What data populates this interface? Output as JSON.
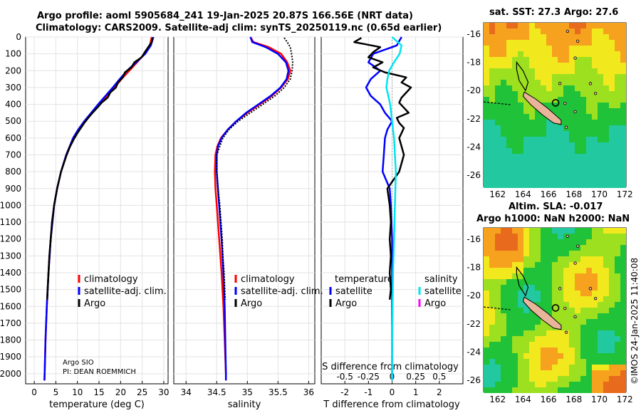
{
  "header": {
    "line1": "Argo profile: aoml 5905684_241 19-Jan-2025 20.87S 166.56E (NRT data)",
    "line2": "Climatology: CARS2009. Satellite-adj clim: synTS_20250119.nc (0.65d earlier)"
  },
  "map_sst": {
    "title": "sat. SST: 27.3 Argo: 27.6"
  },
  "map_sla": {
    "title_line1": "Altim. SLA: -0.017",
    "title_line2": "Argo h1000: NaN h2000: NaN"
  },
  "stamp": "©IMOS 24-Jan-2025 11:40:08",
  "pi": {
    "line1": "Argo SIO",
    "line2": "PI: DEAN ROEMMICH"
  },
  "colors": {
    "climatology": "#ff0000",
    "satellite": "#0000ff",
    "argo": "#000000",
    "sat_salinity": "#00e5ee",
    "argo_salinity": "#ff00ff"
  },
  "chart_data": [
    {
      "type": "line",
      "title": "",
      "xlabel": "temperature (deg C)",
      "ylabel": "",
      "xlim": [
        -2,
        31
      ],
      "ylim": [
        2060,
        0
      ],
      "xticks": [
        0,
        5,
        10,
        15,
        20,
        25,
        30
      ],
      "yticks": [
        0,
        100,
        200,
        300,
        400,
        500,
        600,
        700,
        800,
        900,
        1000,
        1100,
        1200,
        1300,
        1400,
        1500,
        1600,
        1700,
        1800,
        1900,
        2000
      ],
      "legend": [
        "climatology",
        "satellite-adj. clim.",
        "Argo"
      ],
      "series": [
        {
          "name": "climatology",
          "pressure": [
            0,
            50,
            100,
            150,
            200,
            250,
            300,
            350,
            400,
            450,
            500,
            550,
            600,
            700,
            800,
            900,
            1000,
            1200,
            1400,
            1600,
            1800,
            2000,
            2040
          ],
          "values": [
            27.2,
            26.8,
            25.5,
            23.8,
            22.0,
            20.2,
            18.6,
            16.8,
            15.0,
            13.3,
            11.6,
            10.2,
            9.0,
            7.4,
            6.2,
            5.3,
            4.6,
            3.8,
            3.3,
            2.9,
            2.6,
            2.4,
            2.35
          ]
        },
        {
          "name": "satellite-adj. clim.",
          "pressure": [
            0,
            50,
            100,
            150,
            200,
            250,
            300,
            350,
            400,
            450,
            500,
            550,
            600,
            700,
            800,
            900,
            1000,
            1200,
            1400,
            1600,
            1800,
            2000,
            2040
          ],
          "values": [
            27.6,
            27.0,
            25.7,
            23.6,
            21.5,
            19.8,
            18.2,
            16.5,
            14.8,
            13.2,
            11.6,
            10.2,
            9.0,
            7.4,
            6.2,
            5.3,
            4.6,
            3.8,
            3.3,
            2.9,
            2.6,
            2.4,
            2.35
          ]
        },
        {
          "name": "Argo",
          "pressure": [
            5,
            30,
            60,
            90,
            120,
            150,
            180,
            210,
            240,
            270,
            300,
            330,
            360,
            390,
            420,
            450,
            480,
            510,
            540,
            570,
            600,
            650,
            700,
            800,
            900,
            1000,
            1100,
            1200,
            1300,
            1400,
            1500,
            1560
          ],
          "values": [
            27.4,
            27.2,
            26.4,
            25.6,
            24.9,
            23.2,
            22.5,
            21.0,
            20.5,
            19.4,
            18.9,
            17.6,
            17.0,
            15.6,
            14.6,
            13.5,
            12.5,
            11.6,
            10.8,
            10.0,
            9.3,
            8.3,
            7.5,
            6.2,
            5.3,
            4.6,
            4.1,
            3.8,
            3.5,
            3.3,
            3.1,
            3.0
          ]
        }
      ]
    },
    {
      "type": "line",
      "title": "",
      "xlabel": "salinity",
      "ylabel": "",
      "xlim": [
        33.8,
        36.1
      ],
      "ylim": [
        2060,
        0
      ],
      "xticks": [
        34,
        34.5,
        35,
        35.5,
        36
      ],
      "legend": [
        "climatology",
        "satellite-adj. clim.",
        "Argo"
      ],
      "series": [
        {
          "name": "climatology",
          "pressure": [
            0,
            30,
            60,
            100,
            150,
            200,
            250,
            300,
            350,
            400,
            450,
            500,
            550,
            600,
            650,
            700,
            800,
            900,
            1000,
            1100,
            1200,
            1400,
            1600,
            1800,
            2000,
            2040
          ],
          "values": [
            35.05,
            35.1,
            35.35,
            35.55,
            35.65,
            35.7,
            35.66,
            35.55,
            35.4,
            35.2,
            35.0,
            34.82,
            34.68,
            34.57,
            34.51,
            34.48,
            34.47,
            34.48,
            34.5,
            34.52,
            34.54,
            34.58,
            34.61,
            34.63,
            34.65,
            34.65
          ]
        },
        {
          "name": "satellite-adj. clim.",
          "pressure": [
            0,
            30,
            60,
            100,
            150,
            200,
            250,
            300,
            350,
            400,
            450,
            500,
            550,
            600,
            650,
            700,
            800,
            900,
            1000,
            1100,
            1200,
            1400,
            1600,
            1800,
            2000,
            2040
          ],
          "values": [
            35.05,
            35.08,
            35.3,
            35.5,
            35.63,
            35.67,
            35.64,
            35.54,
            35.38,
            35.18,
            34.98,
            34.82,
            34.68,
            34.58,
            34.52,
            34.5,
            34.5,
            34.52,
            34.54,
            34.56,
            34.58,
            34.61,
            34.63,
            34.64,
            34.65,
            34.65
          ]
        },
        {
          "name": "Argo",
          "pressure": [
            5,
            30,
            60,
            100,
            150,
            200,
            250,
            300,
            350,
            400,
            450,
            500,
            550,
            600,
            700,
            800,
            900,
            1000,
            1100,
            1200,
            1300,
            1400,
            1500,
            1560
          ],
          "values": [
            35.6,
            35.65,
            35.7,
            35.72,
            35.74,
            35.73,
            35.7,
            35.6,
            35.45,
            35.25,
            35.05,
            34.85,
            34.7,
            34.6,
            34.5,
            34.5,
            34.52,
            34.55,
            34.57,
            34.59,
            34.6,
            34.62,
            34.63,
            34.64
          ]
        }
      ]
    },
    {
      "type": "line",
      "title": "",
      "xlabel": "T difference from climatology",
      "top_xlabel": "S difference from climatology",
      "ylabel": "",
      "xlim": [
        -3,
        3
      ],
      "ylim": [
        2060,
        0
      ],
      "xticks": [
        -2,
        -1,
        0,
        1,
        2
      ],
      "top_xticks": [
        -0.5,
        -0.25,
        0,
        0.25,
        0.5
      ],
      "top_xlim": [
        -0.75,
        0.75
      ],
      "legend_left_title": "temperature",
      "legend_right_title": "salinity",
      "legend_left": [
        "satellite",
        "Argo"
      ],
      "legend_right": [
        "satellite",
        "Argo"
      ],
      "series": [
        {
          "name": "temperature satellite",
          "axis": "T",
          "pressure": [
            0,
            50,
            100,
            150,
            200,
            250,
            300,
            350,
            400,
            450,
            500,
            550,
            600,
            700,
            800,
            900,
            1000,
            1200,
            1400,
            1600,
            1800,
            2000,
            2040
          ],
          "values": [
            0.4,
            0.2,
            -0.8,
            -1.0,
            -0.5,
            -0.9,
            -1.1,
            -0.9,
            -0.5,
            -0.3,
            0,
            -0.2,
            -0.3,
            -0.35,
            -0.4,
            -0.1,
            -0.05,
            0,
            0,
            0,
            0,
            0,
            0
          ]
        },
        {
          "name": "temperature Argo",
          "axis": "T",
          "pressure": [
            5,
            30,
            60,
            90,
            120,
            150,
            180,
            210,
            240,
            270,
            300,
            330,
            360,
            390,
            420,
            450,
            480,
            510,
            540,
            570,
            600,
            700,
            800,
            900,
            1000,
            1100,
            1200,
            1300,
            1400,
            1500,
            1560
          ],
          "values": [
            -1.3,
            -1.6,
            -0.5,
            -0.8,
            -1.0,
            -0.4,
            -0.8,
            -0.3,
            0.6,
            0.4,
            0.8,
            0.6,
            0.4,
            0.3,
            0.5,
            0.7,
            0.2,
            0.3,
            0.5,
            0.4,
            0.3,
            0.5,
            0.3,
            -0.2,
            -0.1,
            -0.05,
            -0.1,
            -0.05,
            -0.1,
            -0.05,
            -0.1
          ]
        },
        {
          "name": "salinity satellite",
          "axis": "S",
          "pressure": [
            0,
            50,
            100,
            150,
            200,
            250,
            300,
            350,
            400,
            450,
            500,
            550,
            600,
            700,
            800,
            900,
            1000,
            1200,
            1400,
            1600,
            1800,
            2000,
            2040
          ],
          "values": [
            0,
            0.1,
            0.08,
            0.02,
            -0.03,
            -0.05,
            -0.06,
            -0.04,
            -0.02,
            -0.01,
            0,
            0.01,
            0.02,
            0.03,
            0.04,
            0.035,
            0.03,
            0.02,
            0.01,
            0.005,
            0,
            0,
            0
          ]
        }
      ]
    }
  ]
}
